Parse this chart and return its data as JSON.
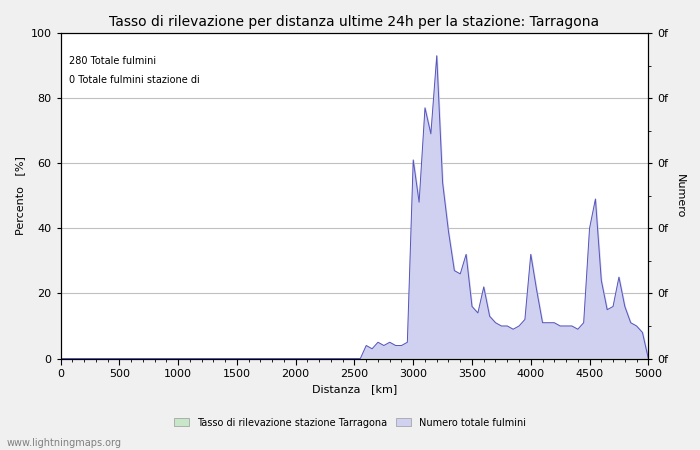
{
  "title": "Tasso di rilevazione per distanza ultime 24h per la stazione: Tarragona",
  "xlabel": "Distanza   [km]",
  "ylabel_left": "Percento   [%]",
  "ylabel_right": "Numero",
  "annotation_line1": "280 Totale fulmini",
  "annotation_line2": "0 Totale fulmini stazione di",
  "xlim": [
    0,
    5000
  ],
  "ylim": [
    0,
    100
  ],
  "x_ticks": [
    0,
    500,
    1000,
    1500,
    2000,
    2500,
    3000,
    3500,
    4000,
    4500,
    5000
  ],
  "y_ticks_left": [
    0,
    20,
    40,
    60,
    80,
    100
  ],
  "right_y_labels": [
    "0f",
    "0f",
    "0f",
    "0f",
    "0f",
    "0f"
  ],
  "legend_label_green": "Tasso di rilevazione stazione Tarragona",
  "legend_label_blue": "Numero totale fulmini",
  "watermark": "www.lightningmaps.org",
  "fill_green_color": "#c8e6c8",
  "fill_blue_color": "#d0d0f0",
  "line_color": "#5555bb",
  "bg_color": "#f0f0f0",
  "plot_bg_color": "#ffffff",
  "grid_color": "#c0c0c0",
  "title_fontsize": 10,
  "axis_fontsize": 8,
  "tick_fontsize": 8,
  "watermark_fontsize": 7,
  "data_x": [
    0,
    50,
    100,
    150,
    200,
    250,
    300,
    350,
    400,
    450,
    500,
    550,
    600,
    650,
    700,
    750,
    800,
    850,
    900,
    950,
    1000,
    1050,
    1100,
    1150,
    1200,
    1250,
    1300,
    1350,
    1400,
    1450,
    1500,
    1550,
    1600,
    1650,
    1700,
    1750,
    1800,
    1850,
    1900,
    1950,
    2000,
    2050,
    2100,
    2150,
    2200,
    2250,
    2300,
    2350,
    2400,
    2450,
    2500,
    2550,
    2600,
    2650,
    2700,
    2750,
    2800,
    2850,
    2900,
    2950,
    3000,
    3050,
    3100,
    3150,
    3200,
    3250,
    3300,
    3350,
    3400,
    3450,
    3500,
    3550,
    3600,
    3650,
    3700,
    3750,
    3800,
    3850,
    3900,
    3950,
    4000,
    4050,
    4100,
    4150,
    4200,
    4250,
    4300,
    4350,
    4400,
    4450,
    4500,
    4550,
    4600,
    4650,
    4700,
    4750,
    4800,
    4850,
    4900,
    4950,
    5000
  ],
  "data_detection": [
    0,
    0,
    0,
    0,
    0,
    0,
    0,
    0,
    0,
    0,
    0,
    0,
    0,
    0,
    0,
    0,
    0,
    0,
    0,
    0,
    0,
    0,
    0,
    0,
    0,
    0,
    0,
    0,
    0,
    0,
    0,
    0,
    0,
    0,
    0,
    0,
    0,
    0,
    0,
    0,
    0,
    0,
    0,
    0,
    0,
    0,
    0,
    0,
    0,
    0,
    0,
    0,
    0,
    0,
    0,
    0,
    0,
    0,
    0,
    0,
    0,
    0,
    0,
    0,
    0,
    0,
    0,
    0,
    0,
    0,
    0,
    0,
    0,
    0,
    0,
    0,
    0,
    0,
    0,
    0,
    0,
    0,
    0,
    0,
    0,
    0,
    0,
    0,
    0,
    0,
    0,
    0,
    0,
    0,
    0,
    0,
    0,
    0,
    0,
    0,
    0
  ],
  "data_total": [
    0,
    0,
    0,
    0,
    0,
    0,
    0,
    0,
    0,
    0,
    0,
    0,
    0,
    0,
    0,
    0,
    0,
    0,
    0,
    0,
    0,
    0,
    0,
    0,
    0,
    0,
    0,
    0,
    0,
    0,
    0,
    0,
    0,
    0,
    0,
    0,
    0,
    0,
    0,
    0,
    0,
    0,
    0,
    0,
    0,
    0,
    0,
    0,
    0,
    0,
    0,
    0,
    4,
    3,
    5,
    4,
    5,
    4,
    4,
    5,
    61,
    48,
    77,
    69,
    93,
    54,
    39,
    27,
    26,
    32,
    16,
    14,
    22,
    13,
    11,
    10,
    10,
    9,
    10,
    12,
    32,
    21,
    11,
    11,
    11,
    10,
    10,
    10,
    9,
    11,
    40,
    49,
    24,
    15,
    16,
    25,
    16,
    11,
    10,
    8,
    0
  ]
}
